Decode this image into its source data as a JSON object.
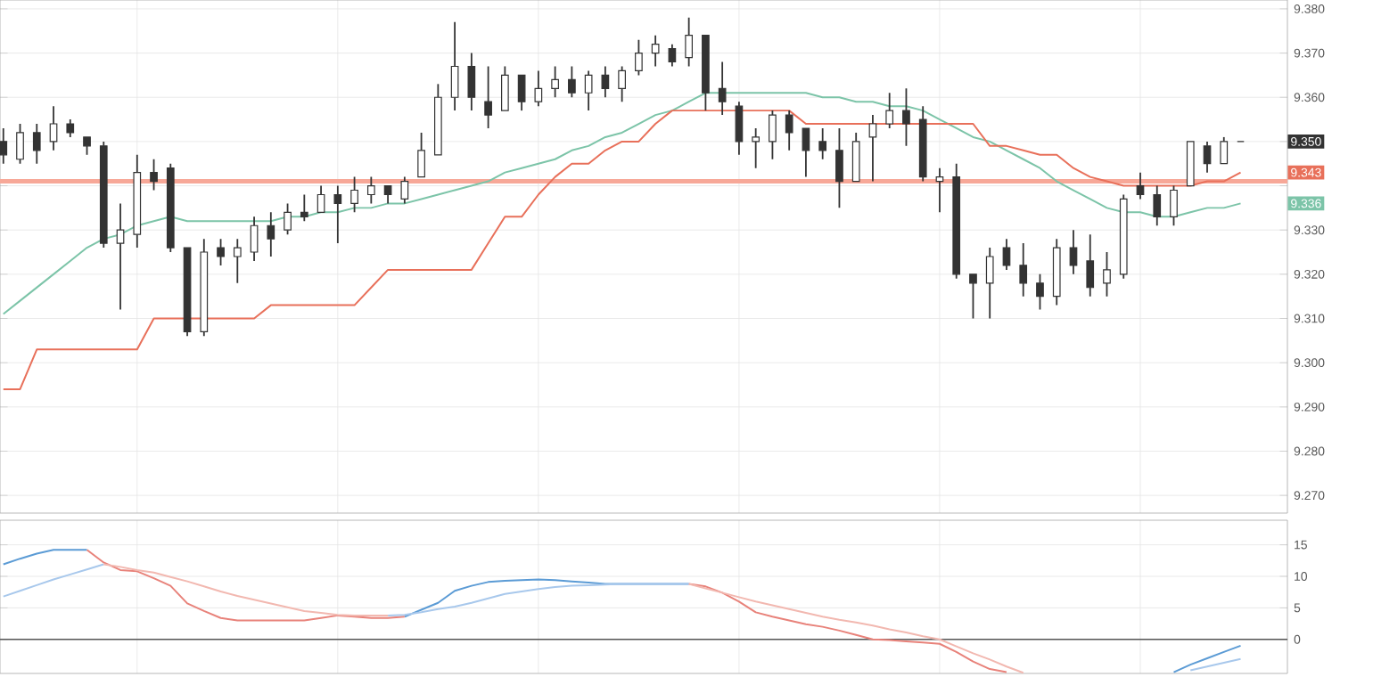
{
  "chart_data": [
    {
      "type": "candlestick",
      "color": "#333333",
      "grid": true,
      "categories": [
        null,
        null,
        null,
        null,
        null,
        null,
        null,
        null,
        null,
        null,
        null,
        null,
        null,
        null,
        null,
        null,
        null,
        null,
        null,
        null,
        null,
        null,
        null,
        null,
        null,
        null,
        null,
        null,
        null,
        null,
        null,
        null,
        null,
        null,
        null,
        null,
        null,
        null,
        null,
        null,
        null,
        null,
        null,
        null,
        null,
        null,
        null,
        null,
        null,
        null,
        null,
        null,
        null,
        null,
        null,
        null,
        null,
        null,
        null,
        null,
        null,
        null,
        null,
        null,
        null,
        null,
        null,
        null,
        null,
        null,
        null,
        null,
        null,
        null,
        null
      ],
      "ohlc": [
        [
          9.35,
          9.353,
          9.345,
          9.347
        ],
        [
          9.346,
          9.354,
          9.345,
          9.352
        ],
        [
          9.352,
          9.354,
          9.345,
          9.348
        ],
        [
          9.35,
          9.358,
          9.348,
          9.354
        ],
        [
          9.354,
          9.355,
          9.351,
          9.352
        ],
        [
          9.351,
          9.351,
          9.347,
          9.349
        ],
        [
          9.349,
          9.35,
          9.326,
          9.327
        ],
        [
          9.327,
          9.336,
          9.312,
          9.33
        ],
        [
          9.329,
          9.347,
          9.326,
          9.343
        ],
        [
          9.343,
          9.346,
          9.339,
          9.341
        ],
        [
          9.344,
          9.345,
          9.325,
          9.326
        ],
        [
          9.326,
          9.326,
          9.306,
          9.307
        ],
        [
          9.307,
          9.328,
          9.306,
          9.325
        ],
        [
          9.326,
          9.328,
          9.322,
          9.324
        ],
        [
          9.324,
          9.328,
          9.318,
          9.326
        ],
        [
          9.325,
          9.333,
          9.323,
          9.331
        ],
        [
          9.331,
          9.334,
          9.324,
          9.328
        ],
        [
          9.33,
          9.336,
          9.329,
          9.334
        ],
        [
          9.334,
          9.338,
          9.332,
          9.333
        ],
        [
          9.334,
          9.34,
          9.334,
          9.338
        ],
        [
          9.338,
          9.34,
          9.327,
          9.336
        ],
        [
          9.336,
          9.342,
          9.334,
          9.339
        ],
        [
          9.338,
          9.342,
          9.336,
          9.34
        ],
        [
          9.34,
          9.34,
          9.336,
          9.338
        ],
        [
          9.337,
          9.342,
          9.336,
          9.341
        ],
        [
          9.342,
          9.352,
          9.342,
          9.348
        ],
        [
          9.347,
          9.363,
          9.347,
          9.36
        ],
        [
          9.36,
          9.377,
          9.357,
          9.367
        ],
        [
          9.367,
          9.37,
          9.357,
          9.36
        ],
        [
          9.359,
          9.367,
          9.353,
          9.356
        ],
        [
          9.357,
          9.367,
          9.357,
          9.365
        ],
        [
          9.365,
          9.365,
          9.357,
          9.359
        ],
        [
          9.359,
          9.366,
          9.358,
          9.362
        ],
        [
          9.362,
          9.367,
          9.36,
          9.364
        ],
        [
          9.364,
          9.367,
          9.36,
          9.361
        ],
        [
          9.361,
          9.366,
          9.357,
          9.365
        ],
        [
          9.365,
          9.367,
          9.36,
          9.362
        ],
        [
          9.362,
          9.367,
          9.359,
          9.366
        ],
        [
          9.366,
          9.373,
          9.365,
          9.37
        ],
        [
          9.37,
          9.374,
          9.367,
          9.372
        ],
        [
          9.371,
          9.372,
          9.367,
          9.368
        ],
        [
          9.369,
          9.378,
          9.367,
          9.374
        ],
        [
          9.374,
          9.374,
          9.357,
          9.361
        ],
        [
          9.362,
          9.368,
          9.356,
          9.359
        ],
        [
          9.358,
          9.359,
          9.347,
          9.35
        ],
        [
          9.35,
          9.353,
          9.344,
          9.351
        ],
        [
          9.35,
          9.357,
          9.346,
          9.356
        ],
        [
          9.356,
          9.357,
          9.348,
          9.352
        ],
        [
          9.353,
          9.353,
          9.342,
          9.348
        ],
        [
          9.35,
          9.353,
          9.346,
          9.348
        ],
        [
          9.348,
          9.353,
          9.335,
          9.341
        ],
        [
          9.341,
          9.352,
          9.341,
          9.35
        ],
        [
          9.351,
          9.356,
          9.341,
          9.354
        ],
        [
          9.354,
          9.361,
          9.353,
          9.357
        ],
        [
          9.357,
          9.362,
          9.349,
          9.354
        ],
        [
          9.355,
          9.358,
          9.341,
          9.342
        ],
        [
          9.341,
          9.344,
          9.334,
          9.342
        ],
        [
          9.342,
          9.345,
          9.319,
          9.32
        ],
        [
          9.32,
          9.32,
          9.31,
          9.318
        ],
        [
          9.318,
          9.326,
          9.31,
          9.324
        ],
        [
          9.326,
          9.328,
          9.321,
          9.322
        ],
        [
          9.322,
          9.327,
          9.315,
          9.318
        ],
        [
          9.318,
          9.32,
          9.312,
          9.315
        ],
        [
          9.315,
          9.328,
          9.313,
          9.326
        ],
        [
          9.326,
          9.33,
          9.32,
          9.322
        ],
        [
          9.323,
          9.329,
          9.315,
          9.317
        ],
        [
          9.318,
          9.325,
          9.315,
          9.321
        ],
        [
          9.32,
          9.338,
          9.319,
          9.337
        ],
        [
          9.34,
          9.343,
          9.337,
          9.338
        ],
        [
          9.338,
          9.34,
          9.331,
          9.333
        ],
        [
          9.333,
          9.34,
          9.331,
          9.339
        ],
        [
          9.34,
          9.35,
          9.34,
          9.35
        ],
        [
          9.349,
          9.35,
          9.343,
          9.345
        ],
        [
          9.345,
          9.351,
          9.345,
          9.35
        ],
        [
          9.35,
          9.35,
          9.35,
          9.35
        ]
      ],
      "series": [
        {
          "type": "line",
          "color": "#7cc4a8",
          "values": [
            9.311,
            9.314,
            9.317,
            9.32,
            9.323,
            9.326,
            9.328,
            9.329,
            9.331,
            9.332,
            9.333,
            9.332,
            9.332,
            9.332,
            9.332,
            9.332,
            9.332,
            9.333,
            9.333,
            9.334,
            9.334,
            9.335,
            9.335,
            9.336,
            9.336,
            9.337,
            9.338,
            9.339,
            9.34,
            9.341,
            9.343,
            9.344,
            9.345,
            9.346,
            9.348,
            9.349,
            9.351,
            9.352,
            9.354,
            9.356,
            9.357,
            9.359,
            9.361,
            9.361,
            9.361,
            9.361,
            9.361,
            9.361,
            9.361,
            9.36,
            9.36,
            9.359,
            9.359,
            9.358,
            9.358,
            9.357,
            9.355,
            9.353,
            9.351,
            9.35,
            9.348,
            9.346,
            9.344,
            9.341,
            9.339,
            9.337,
            9.335,
            9.334,
            9.334,
            9.333,
            9.333,
            9.334,
            9.335,
            9.335,
            9.336
          ]
        },
        {
          "type": "line",
          "color": "#e8705a",
          "values": [
            9.294,
            9.294,
            9.303,
            9.303,
            9.303,
            9.303,
            9.303,
            9.303,
            9.303,
            9.31,
            9.31,
            9.31,
            9.31,
            9.31,
            9.31,
            9.31,
            9.313,
            9.313,
            9.313,
            9.313,
            9.313,
            9.313,
            9.317,
            9.321,
            9.321,
            9.321,
            9.321,
            9.321,
            9.321,
            9.327,
            9.333,
            9.333,
            9.338,
            9.342,
            9.345,
            9.345,
            9.348,
            9.35,
            9.35,
            9.354,
            9.357,
            9.357,
            9.357,
            9.357,
            9.357,
            9.357,
            9.357,
            9.357,
            9.354,
            9.354,
            9.354,
            9.354,
            9.354,
            9.354,
            9.354,
            9.354,
            9.354,
            9.354,
            9.354,
            9.349,
            9.349,
            9.348,
            9.347,
            9.347,
            9.344,
            9.342,
            9.341,
            9.34,
            9.34,
            9.34,
            9.34,
            9.34,
            9.341,
            9.341,
            9.343
          ]
        }
      ],
      "ref_lines": [
        {
          "axis": "y",
          "value": 9.341,
          "color": "#f7a898"
        }
      ],
      "annotations": [
        "9.350",
        "9.343",
        "9.336"
      ],
      "ylim": [
        9.266,
        9.382
      ],
      "yticks": [
        {
          "value": 9.38,
          "label": "9.380"
        },
        {
          "value": 9.37,
          "label": "9.370"
        },
        {
          "value": 9.36,
          "label": "9.360"
        },
        {
          "value": 9.35,
          "label": null
        },
        {
          "value": 9.34,
          "label": null
        },
        {
          "value": 9.33,
          "label": "9.330"
        },
        {
          "value": 9.32,
          "label": "9.320"
        },
        {
          "value": 9.31,
          "label": "9.310"
        },
        {
          "value": 9.3,
          "label": "9.300"
        },
        {
          "value": 9.29,
          "label": "9.290"
        },
        {
          "value": 9.28,
          "label": "9.280"
        },
        {
          "value": 9.27,
          "label": "9.270"
        }
      ]
    },
    {
      "type": "line",
      "grid": true,
      "categories": [
        null,
        null,
        null,
        null,
        null,
        null,
        null,
        null,
        null,
        null,
        null,
        null,
        null,
        null,
        null,
        null,
        null,
        null,
        null,
        null,
        null,
        null,
        null,
        null,
        null,
        null,
        null,
        null,
        null,
        null,
        null,
        null,
        null,
        null,
        null,
        null,
        null,
        null,
        null,
        null,
        null,
        null,
        null,
        null,
        null,
        null,
        null,
        null,
        null,
        null,
        null,
        null,
        null,
        null,
        null,
        null,
        null,
        null,
        null,
        null,
        null,
        null,
        null,
        null,
        null,
        null,
        null,
        null,
        null,
        null,
        null,
        null,
        null,
        null,
        null
      ],
      "series": [
        {
          "color": "#5b9bd5",
          "values": [
            11.9,
            12.8,
            13.6,
            14.2,
            14.2,
            14.2,
            null,
            null,
            null,
            null,
            null,
            null,
            null,
            null,
            null,
            null,
            null,
            null,
            null,
            null,
            null,
            null,
            null,
            null,
            3.6,
            4.7,
            5.8,
            7.7,
            8.5,
            9.1,
            9.3,
            9.4,
            9.5,
            9.4,
            9.2,
            9.0,
            8.8,
            8.8,
            8.8,
            8.8,
            8.8,
            8.8,
            null,
            null,
            null,
            null,
            null,
            null,
            null,
            null,
            null,
            null,
            null,
            null,
            null,
            null,
            null,
            null,
            null,
            null,
            null,
            null,
            null,
            null,
            null,
            null,
            null,
            null,
            null,
            null,
            -5.2,
            -4.0,
            -3.0,
            -2.0,
            -1.0
          ]
        },
        {
          "color": "#e8827a",
          "values": [
            null,
            null,
            null,
            null,
            null,
            14.2,
            12.2,
            11.0,
            10.8,
            9.7,
            8.5,
            5.7,
            4.5,
            3.4,
            3.0,
            3.0,
            3.0,
            3.0,
            3.0,
            3.4,
            3.8,
            3.6,
            3.4,
            3.4,
            3.6,
            null,
            null,
            null,
            null,
            null,
            null,
            null,
            null,
            null,
            null,
            null,
            null,
            null,
            null,
            null,
            null,
            8.8,
            8.4,
            7.4,
            6.0,
            4.3,
            3.6,
            3.0,
            2.4,
            2.0,
            1.4,
            0.7,
            0.0,
            -0.1,
            -0.3,
            -0.5,
            -0.7,
            -2.0,
            -3.5,
            -4.7,
            -5.2,
            null,
            null,
            null,
            null,
            null,
            null,
            null,
            null,
            null,
            null,
            null,
            null,
            null,
            null
          ]
        },
        {
          "color": "#a8c8ec",
          "values": [
            6.8,
            7.7,
            8.6,
            9.5,
            10.3,
            11.1,
            11.9,
            null,
            null,
            null,
            null,
            null,
            null,
            null,
            null,
            null,
            null,
            null,
            null,
            null,
            null,
            null,
            null,
            3.8,
            3.9,
            4.3,
            4.8,
            5.2,
            5.8,
            6.5,
            7.2,
            7.6,
            8.0,
            8.3,
            8.5,
            8.6,
            8.7,
            8.8,
            8.8,
            8.8,
            8.8,
            8.8,
            null,
            null,
            null,
            null,
            null,
            null,
            null,
            null,
            null,
            null,
            null,
            null,
            null,
            null,
            null,
            null,
            null,
            null,
            null,
            null,
            null,
            null,
            null,
            null,
            null,
            null,
            null,
            null,
            null,
            -4.9,
            -4.3,
            -3.7,
            -3.1
          ]
        },
        {
          "color": "#f2b8b0",
          "values": [
            null,
            null,
            null,
            null,
            null,
            null,
            11.9,
            11.5,
            11.0,
            10.6,
            9.9,
            9.2,
            8.4,
            7.6,
            6.9,
            6.3,
            5.7,
            5.1,
            4.5,
            4.2,
            3.9,
            3.8,
            3.8,
            3.8,
            null,
            null,
            null,
            null,
            null,
            null,
            null,
            null,
            null,
            null,
            null,
            null,
            null,
            null,
            null,
            null,
            null,
            8.8,
            8.1,
            7.4,
            6.7,
            6.0,
            5.4,
            4.8,
            4.2,
            3.6,
            3.1,
            2.7,
            2.2,
            1.6,
            1.1,
            0.5,
            0.0,
            -1.1,
            -2.2,
            -3.2,
            -4.3,
            -5.3,
            null,
            null,
            null,
            null,
            null,
            null,
            null,
            null,
            null,
            null,
            null,
            null,
            null
          ]
        }
      ],
      "ref_lines": [
        {
          "axis": "y",
          "value": 0,
          "color": "#555555"
        }
      ],
      "ylim": [
        -5.4,
        18.9
      ],
      "yticks": [
        15,
        10,
        5,
        0
      ]
    }
  ]
}
